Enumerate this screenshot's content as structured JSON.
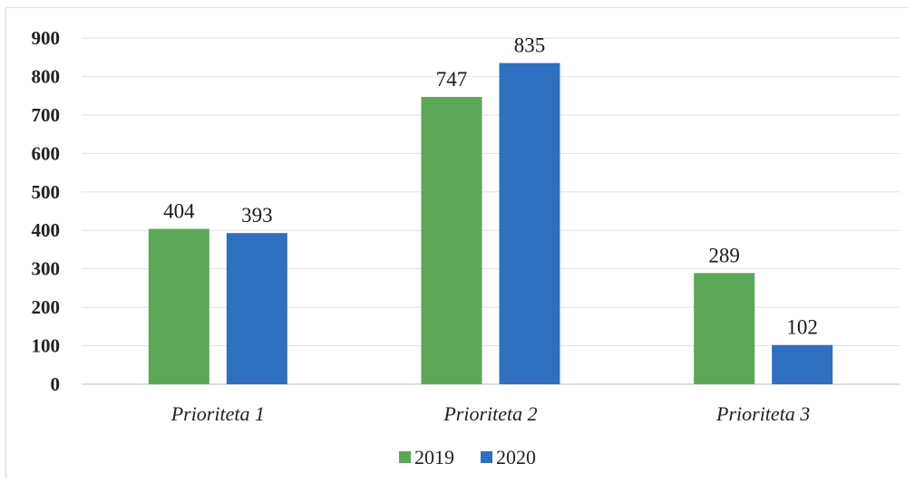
{
  "chart_data": {
    "type": "bar",
    "title": "",
    "xlabel": "",
    "ylabel": "",
    "categories": [
      "Prioriteta 1",
      "Prioriteta 2",
      "Prioriteta 3"
    ],
    "series": [
      {
        "name": "2019",
        "values": [
          404,
          747,
          289
        ],
        "color": "#5aa857"
      },
      {
        "name": "2020",
        "values": [
          393,
          835,
          102
        ],
        "color": "#2f6fbf"
      }
    ],
    "yticks": [
      "0",
      "100",
      "200",
      "300",
      "400",
      "500",
      "600",
      "700",
      "800",
      "900"
    ],
    "ylim": [
      0,
      900
    ],
    "grid": true,
    "legend": "bottom"
  }
}
